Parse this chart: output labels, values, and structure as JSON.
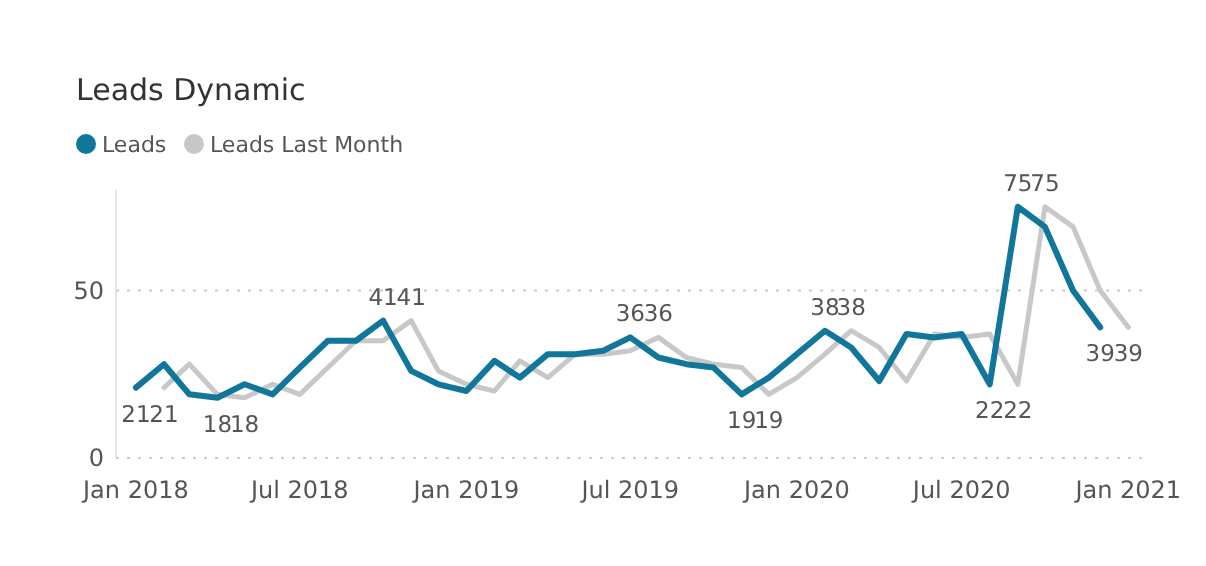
{
  "chart_data": {
    "type": "line",
    "title": "Leads Dynamic",
    "legend": "top left",
    "grid": "y",
    "data_labels": false,
    "x": [
      "2018-01",
      "2018-02",
      "2018-03",
      "2018-04",
      "2018-05",
      "2018-06",
      "2018-07",
      "2018-08",
      "2018-09",
      "2018-10",
      "2018-11",
      "2018-12",
      "2019-01",
      "2019-02",
      "2019-03",
      "2019-04",
      "2019-05",
      "2019-06",
      "2019-07",
      "2019-08",
      "2019-09",
      "2019-10",
      "2019-11",
      "2019-12",
      "2020-01",
      "2020-02",
      "2020-03",
      "2020-04",
      "2020-05",
      "2020-06",
      "2020-07",
      "2020-08",
      "2020-09",
      "2020-10",
      "2020-11",
      "2020-12"
    ],
    "xlim": [
      "2017-12-10",
      "2021-01-25"
    ],
    "xticks": [
      {
        "value": "2018-01",
        "label": "Jan 2018"
      },
      {
        "value": "2018-07",
        "label": "Jul 2018"
      },
      {
        "value": "2019-01",
        "label": "Jan 2019"
      },
      {
        "value": "2019-07",
        "label": "Jul 2019"
      },
      {
        "value": "2020-01",
        "label": "Jan 2020"
      },
      {
        "value": "2020-07",
        "label": "Jul 2020"
      },
      {
        "value": "2021-01",
        "label": "Jan 2021"
      }
    ],
    "ylim": [
      0,
      80
    ],
    "yticks": [
      0,
      50
    ],
    "series": [
      {
        "name": "Leads",
        "color": "#10769a",
        "values": [
          21,
          28,
          19,
          18,
          22,
          19,
          27,
          35,
          35,
          41,
          26,
          22,
          20,
          29,
          24,
          31,
          31,
          32,
          36,
          30,
          28,
          27,
          19,
          24,
          31,
          38,
          33,
          23,
          37,
          36,
          37,
          22,
          75,
          69,
          50,
          39
        ],
        "value_labels": [
          "21",
          null,
          null,
          "18",
          null,
          null,
          null,
          null,
          null,
          "41",
          null,
          null,
          null,
          null,
          null,
          null,
          null,
          null,
          "36",
          null,
          null,
          null,
          "19",
          null,
          null,
          "38",
          null,
          null,
          null,
          null,
          null,
          "22",
          "75",
          null,
          null,
          "39"
        ]
      },
      {
        "name": "Leads Last Month",
        "color": "#c8c8c8",
        "x": [
          "2018-02",
          "2018-03",
          "2018-04",
          "2018-05",
          "2018-06",
          "2018-07",
          "2018-08",
          "2018-09",
          "2018-10",
          "2018-11",
          "2018-12",
          "2019-01",
          "2019-02",
          "2019-03",
          "2019-04",
          "2019-05",
          "2019-06",
          "2019-07",
          "2019-08",
          "2019-09",
          "2019-10",
          "2019-11",
          "2019-12",
          "2020-01",
          "2020-02",
          "2020-03",
          "2020-04",
          "2020-05",
          "2020-06",
          "2020-07",
          "2020-08",
          "2020-09",
          "2020-10",
          "2020-11",
          "2020-12",
          "2021-01"
        ],
        "values": [
          21,
          28,
          19,
          18,
          22,
          19,
          27,
          35,
          35,
          41,
          26,
          22,
          20,
          29,
          24,
          31,
          31,
          32,
          36,
          30,
          28,
          27,
          19,
          24,
          31,
          38,
          33,
          23,
          37,
          36,
          37,
          22,
          75,
          69,
          50,
          39
        ],
        "value_labels": [
          "21",
          null,
          null,
          "18",
          null,
          null,
          null,
          null,
          null,
          "41",
          null,
          null,
          null,
          null,
          null,
          null,
          null,
          null,
          "36",
          null,
          null,
          null,
          "19",
          null,
          null,
          "38",
          null,
          null,
          null,
          null,
          null,
          "22",
          "75",
          null,
          null,
          "39"
        ]
      }
    ]
  }
}
